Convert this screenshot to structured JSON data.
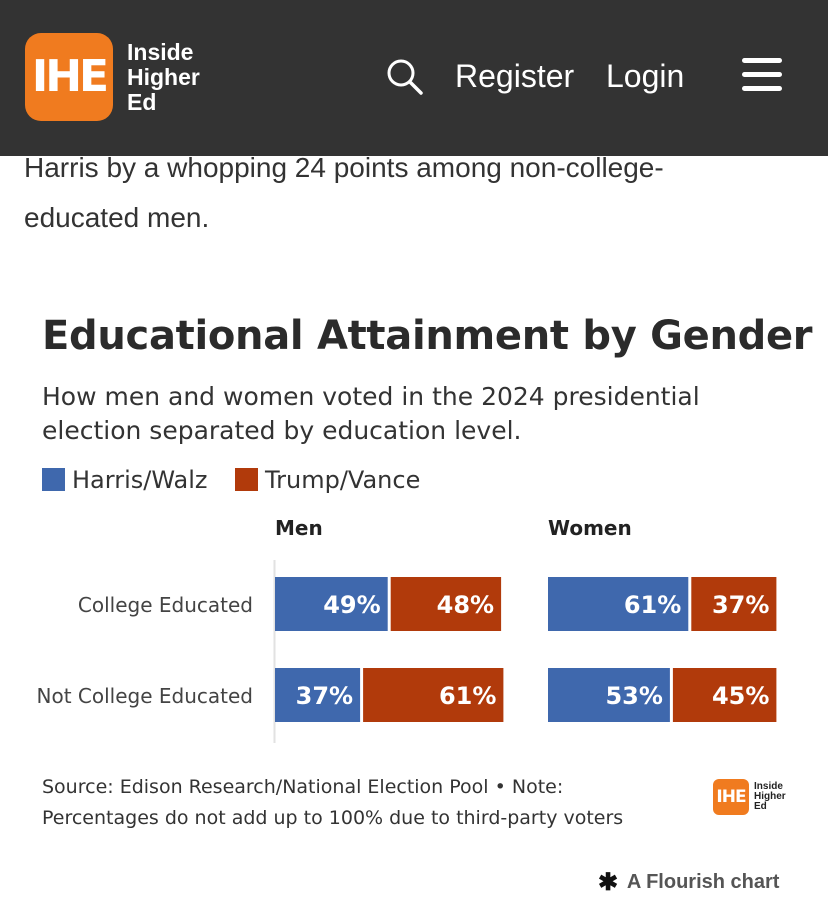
{
  "header": {
    "logo_letters": "IHE",
    "logo_text_lines": [
      "Inside",
      "Higher",
      "Ed"
    ],
    "register_label": "Register",
    "login_label": "Login"
  },
  "article": {
    "line1": "Harris by a whopping 24 points among non-college-",
    "line2": "educated men."
  },
  "colors": {
    "header_bg": "#333333",
    "brand_orange": "#f07b1f",
    "harris_blue": "#3f68ad",
    "trump_red": "#b13a0b"
  },
  "chart_data": {
    "type": "bar",
    "title": "Educational Attainment by Gender",
    "subtitle": "How men and women voted in the 2024 presidential election separated by education level.",
    "legend": [
      "Harris/Walz",
      "Trump/Vance"
    ],
    "panels": [
      {
        "name": "Men",
        "categories": [
          "College Educated",
          "Not College Educated"
        ],
        "series": [
          {
            "name": "Harris/Walz",
            "values": [
              49,
              37
            ],
            "labels": [
              "49%",
              "37%"
            ]
          },
          {
            "name": "Trump/Vance",
            "values": [
              48,
              61
            ],
            "labels": [
              "48%",
              "61%"
            ]
          }
        ]
      },
      {
        "name": "Women",
        "categories": [
          "College Educated",
          "Not College Educated"
        ],
        "series": [
          {
            "name": "Harris/Walz",
            "values": [
              61,
              53
            ],
            "labels": [
              "61%",
              "53%"
            ]
          },
          {
            "name": "Trump/Vance",
            "values": [
              37,
              45
            ],
            "labels": [
              "37%",
              "45%"
            ]
          }
        ]
      }
    ],
    "orientation": "horizontal-stacked",
    "legend_placement": "top-left",
    "source": "Source: Edison Research/National Election Pool • Note: Percentages do not add up to 100% due to third-party voters"
  },
  "footer": {
    "mini_logo_letters": "IHE",
    "mini_logo_text_lines": [
      "Inside",
      "Higher",
      "Ed"
    ],
    "flourish_star": "✱",
    "flourish_label": "A Flourish chart"
  }
}
